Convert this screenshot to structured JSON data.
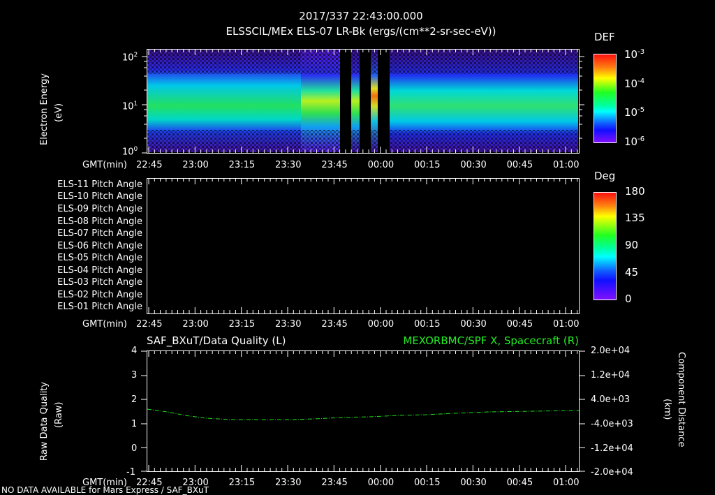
{
  "header": {
    "timestamp": "2017/337 22:43:00.000",
    "subtitle": "ELSSCIL/MEx ELS-07 LR-Bk  (ergs/(cm**2-sr-sec-eV))"
  },
  "time_axis": {
    "label": "GMT(min)",
    "ticks": [
      "22:45",
      "23:00",
      "23:15",
      "23:30",
      "23:45",
      "00:00",
      "00:15",
      "00:30",
      "00:45",
      "01:00"
    ]
  },
  "panel1": {
    "ylabel": "Electron Energy",
    "yunit": "(eV)",
    "yticks": [
      "10^2",
      "10^1",
      "10^0"
    ],
    "colorbar": {
      "title": "DEF",
      "ticks": [
        "10^-3",
        "10^-4",
        "10^-5",
        "10^-6"
      ]
    }
  },
  "panel2": {
    "rows": [
      "ELS-11 Pitch Angle",
      "ELS-10 Pitch Angle",
      "ELS-09 Pitch Angle",
      "ELS-08 Pitch Angle",
      "ELS-07 Pitch Angle",
      "ELS-06 Pitch Angle",
      "ELS-05 Pitch Angle",
      "ELS-04 Pitch Angle",
      "ELS-03 Pitch Angle",
      "ELS-02 Pitch Angle",
      "ELS-01 Pitch Angle"
    ],
    "colorbar": {
      "title": "Deg",
      "ticks": [
        "180",
        "135",
        "90",
        "45",
        "0"
      ]
    }
  },
  "panel3": {
    "left_title": "SAF_BXuT/Data Quality (L)",
    "right_title": "MEXORBMC/SPF X, Spacecraft (R)",
    "ylabel_left": "Raw Data Quality",
    "yunit_left": "(Raw)",
    "yticks_left": [
      "4",
      "3",
      "2",
      "1",
      "0",
      "-1"
    ],
    "ylabel_right": "Component Distance",
    "yunit_right": "(km)",
    "yticks_right": [
      "2.0e+04",
      "1.2e+04",
      "4.0e+03",
      "-4.0e+03",
      "-1.2e+04",
      "-2.0e+04"
    ],
    "line_color": "#22dd22"
  },
  "footer": {
    "notice": "NO DATA AVAILABLE for Mars  Express / SAF_BXuT"
  },
  "chart_data": [
    {
      "type": "heatmap",
      "title": "ELSSCIL/MEx ELS-07 LR-Bk (ergs/(cm**2-sr-sec-eV))",
      "xlabel": "GMT(min)",
      "ylabel": "Electron Energy (eV)",
      "x_ticks": [
        "22:45",
        "23:00",
        "23:15",
        "23:30",
        "23:45",
        "00:00",
        "00:15",
        "00:30",
        "00:45",
        "01:00"
      ],
      "y_scale": "log",
      "ylim": [
        1,
        150
      ],
      "colorbar": {
        "label": "DEF",
        "scale": "log",
        "range": [
          1e-06,
          0.001
        ]
      },
      "features": {
        "peak_energy_band_eV": [
          5,
          30
        ],
        "data_gaps": [
          "~23:49-23:53",
          "~23:56-24:00",
          "~00:00-00:05"
        ],
        "max_intensity_near": "23:58, ~25 eV (orange, ~5e-4)"
      }
    },
    {
      "type": "heatmap",
      "title": "ELS Pitch Angle",
      "xlabel": "GMT(min)",
      "rows": [
        "ELS-11",
        "ELS-10",
        "ELS-09",
        "ELS-08",
        "ELS-07",
        "ELS-06",
        "ELS-05",
        "ELS-04",
        "ELS-03",
        "ELS-02",
        "ELS-01"
      ],
      "colorbar": {
        "label": "Deg",
        "range": [
          0,
          180
        ],
        "ticks": [
          0,
          45,
          90,
          135,
          180
        ]
      },
      "values": "empty"
    },
    {
      "type": "line",
      "title_left": "SAF_BXuT/Data Quality (L)",
      "title_right": "MEXORBMC/SPF X, Spacecraft (R)",
      "xlabel": "GMT(min)",
      "ylabel": "Raw Data Quality (Raw)",
      "ylim": [
        -1,
        4
      ],
      "ylabel_right": "Component Distance (km)",
      "ylim_right": [
        -20000,
        20000
      ],
      "series": [
        {
          "name": "MEXORBMC/SPF X, Spacecraft (R)",
          "axis": "right",
          "x": [
            "22:45",
            "23:00",
            "23:15",
            "23:30",
            "23:45",
            "00:00",
            "00:15",
            "00:30",
            "00:45",
            "01:00"
          ],
          "values": [
            3500,
            600,
            -1200,
            -1500,
            -1500,
            -1100,
            -200,
            700,
            1500,
            2200
          ]
        }
      ]
    }
  ]
}
